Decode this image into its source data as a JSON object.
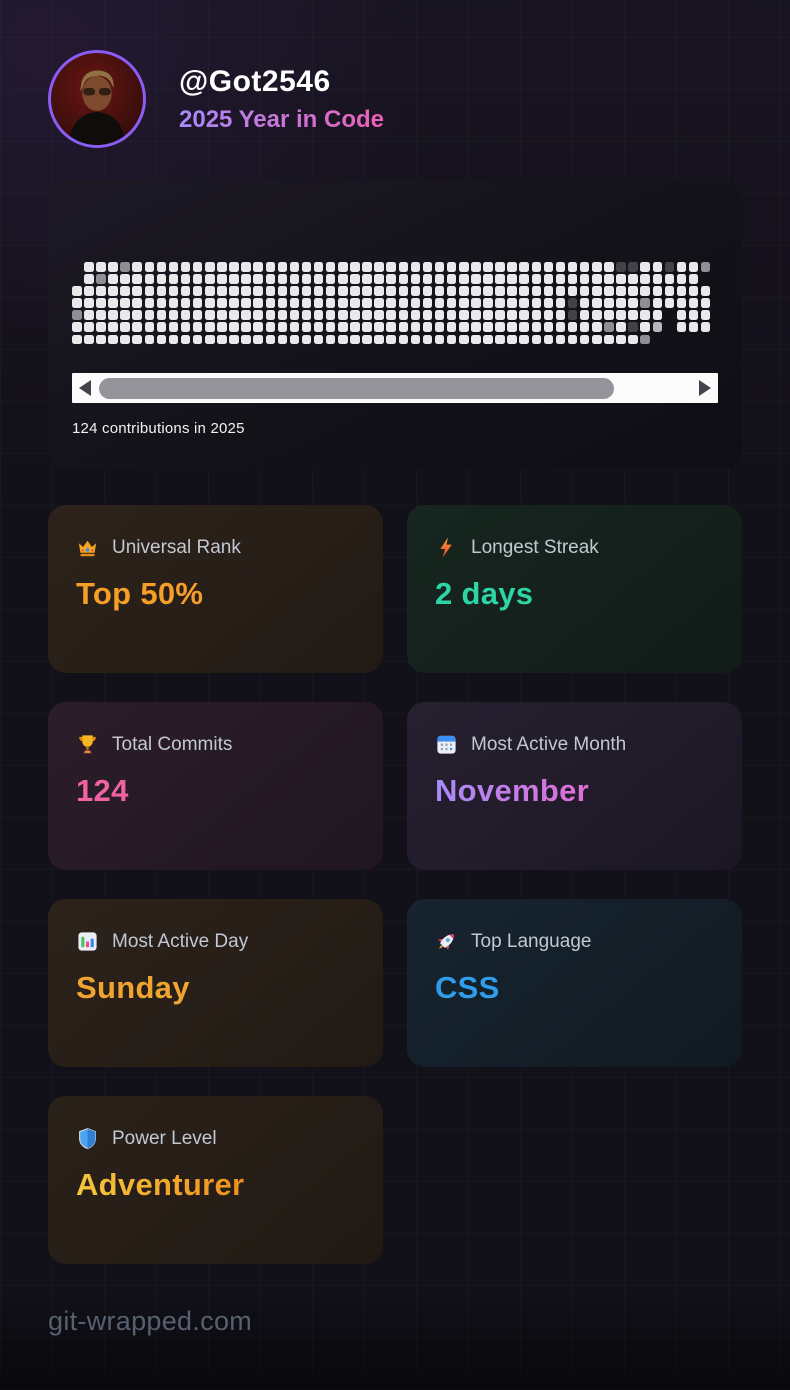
{
  "header": {
    "username": "@Got2546",
    "subtitle": "2025 Year in Code",
    "subtitle_gradient": [
      "#a78bfa",
      "#ec5fb8"
    ],
    "avatar_ring_color": "#8b5cf6"
  },
  "contributions": {
    "caption": "124 contributions in 2025",
    "grid": {
      "columns": 53,
      "rows": [
        ".aaabaaaaaaaaaaaaaaaaaaaaaaaaaaaaaaaaaaaaaaaaccaacaaba",
        ".abaaaaaaaaaaaaaaaaaaaaaaaaaaaaaaaaaaaaaaaaaaaaaaaaa",
        ".aaaaaaaaaaaaaaaaaaaaaaaaaaaaaaaaaaaaaaaaaaaaaaaaaaa",
        "aaaaaaaaaaaaaaaaaaaaaaaaaaaaaaaaaaaaaaaaaaacaaaaabaaa",
        "aabaaaaaaaaaaaaaaaaaaaaaaaaaaaaaaaaaaaaaaaacaaaaaaa.",
        "aaaaaaaaaaaaaaaaaaaaaaaaaaaaaaaaaaaaaaaaaaaaaaabacai.",
        "aaaaaaaaaaaaaaaaaaaaaaaaaaaaaaaaaaaaaaaaaaaaaaaaaab."
      ],
      "levels": {
        "a": "#e9e8ea",
        "b": "#8f8e94",
        "c": "#454149",
        "i": "#b6b5bb"
      }
    },
    "scrollbar": {
      "thumb_percent": 87
    }
  },
  "stats": [
    {
      "icon": "crown-icon",
      "label": "Universal Rank",
      "value": "Top 50%",
      "value_color": "#f59f28",
      "card_bg": [
        "#2d231b",
        "#211a14"
      ]
    },
    {
      "icon": "zap-icon",
      "label": "Longest Streak",
      "value": "2 days",
      "value_color": "#2dd4a4",
      "card_bg": [
        "#172620",
        "#111b17"
      ]
    },
    {
      "icon": "trophy-icon",
      "label": "Total Commits",
      "value": "124",
      "value_color": "#f162a2",
      "card_bg": [
        "#2c1e28",
        "#1f1620"
      ]
    },
    {
      "icon": "calendar-icon",
      "label": "Most Active Month",
      "value": "November",
      "value_gradient": [
        "#a78bfa",
        "#df6ed4"
      ],
      "card_bg": [
        "#272030",
        "#1b1624"
      ]
    },
    {
      "icon": "bar-chart-icon",
      "label": "Most Active Day",
      "value": "Sunday",
      "value_color": "#efa42f",
      "card_bg": [
        "#2c231b",
        "#211a14"
      ]
    },
    {
      "icon": "rocket-icon",
      "label": "Top Language",
      "value": "CSS",
      "value_color": "#2f9de9",
      "card_bg": [
        "#17242f",
        "#101a22"
      ]
    },
    {
      "icon": "shield-icon",
      "label": "Power Level",
      "value": "Adventurer",
      "value_gradient": [
        "#f6c63f",
        "#ee8f1f"
      ],
      "card_bg": [
        "#2b221a",
        "#201913"
      ]
    }
  ],
  "footer": {
    "site": "git-wrapped.com"
  }
}
